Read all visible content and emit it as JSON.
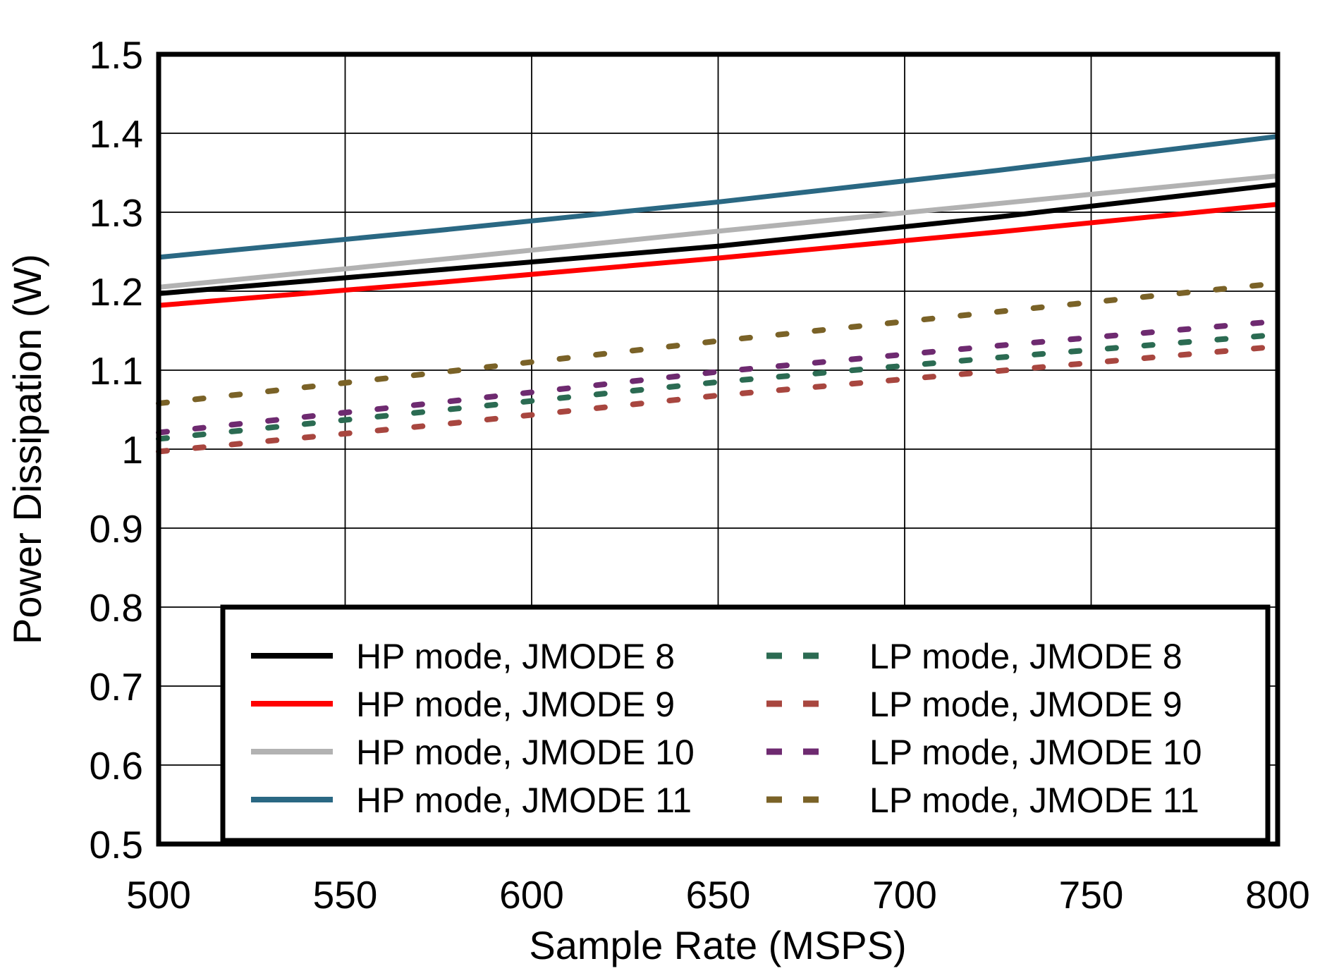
{
  "chart_data": {
    "type": "line",
    "title": "",
    "xlabel": "Sample Rate (MSPS)",
    "ylabel": "Power Dissipation (W)",
    "xlim": [
      500,
      800
    ],
    "ylim": [
      0.5,
      1.5
    ],
    "grid": true,
    "x_ticks": [
      500,
      550,
      600,
      650,
      700,
      750,
      800
    ],
    "x_tick_labels": [
      "500",
      "550",
      "600",
      "650",
      "700",
      "750",
      "800"
    ],
    "y_ticks": [
      0.5,
      0.6,
      0.7,
      0.8,
      0.9,
      1.0,
      1.1,
      1.2,
      1.3,
      1.4,
      1.5
    ],
    "y_tick_labels": [
      "0.5",
      "0.6",
      "0.7",
      "0.8",
      "0.9",
      "1",
      "1.1",
      "1.2",
      "1.3",
      "1.4",
      "1.5"
    ],
    "x": [
      500,
      575,
      650,
      725,
      800
    ],
    "series": [
      {
        "name": "HP mode, JMODE 8",
        "color": "#000000",
        "style": "solid",
        "values": [
          1.197,
          1.227,
          1.257,
          1.294,
          1.335
        ]
      },
      {
        "name": "HP mode, JMODE 9",
        "color": "#ff0000",
        "style": "solid",
        "values": [
          1.182,
          1.211,
          1.242,
          1.275,
          1.31
        ]
      },
      {
        "name": "HP mode, JMODE 10",
        "color": "#b2b2b2",
        "style": "solid",
        "values": [
          1.205,
          1.24,
          1.276,
          1.311,
          1.346
        ]
      },
      {
        "name": "HP mode, JMODE 11",
        "color": "#2a6883",
        "style": "solid",
        "values": [
          1.243,
          1.277,
          1.313,
          1.353,
          1.396
        ]
      },
      {
        "name": "LP mode, JMODE 8",
        "color": "#2b6b52",
        "style": "dashed",
        "values": [
          1.013,
          1.049,
          1.085,
          1.116,
          1.145
        ]
      },
      {
        "name": "LP mode, JMODE 9",
        "color": "#a8463f",
        "style": "dashed",
        "values": [
          0.997,
          1.031,
          1.068,
          1.099,
          1.13
        ]
      },
      {
        "name": "LP mode, JMODE 10",
        "color": "#6e2a70",
        "style": "dashed",
        "values": [
          1.021,
          1.059,
          1.098,
          1.131,
          1.162
        ]
      },
      {
        "name": "LP mode, JMODE 11",
        "color": "#7a6227",
        "style": "dashed",
        "values": [
          1.058,
          1.097,
          1.137,
          1.174,
          1.21
        ]
      }
    ],
    "legend": {
      "position": "bottom",
      "columns": 2,
      "border": true
    }
  },
  "style": {
    "background": "#ffffff",
    "axis_color": "#000000",
    "grid_color": "#000000"
  }
}
